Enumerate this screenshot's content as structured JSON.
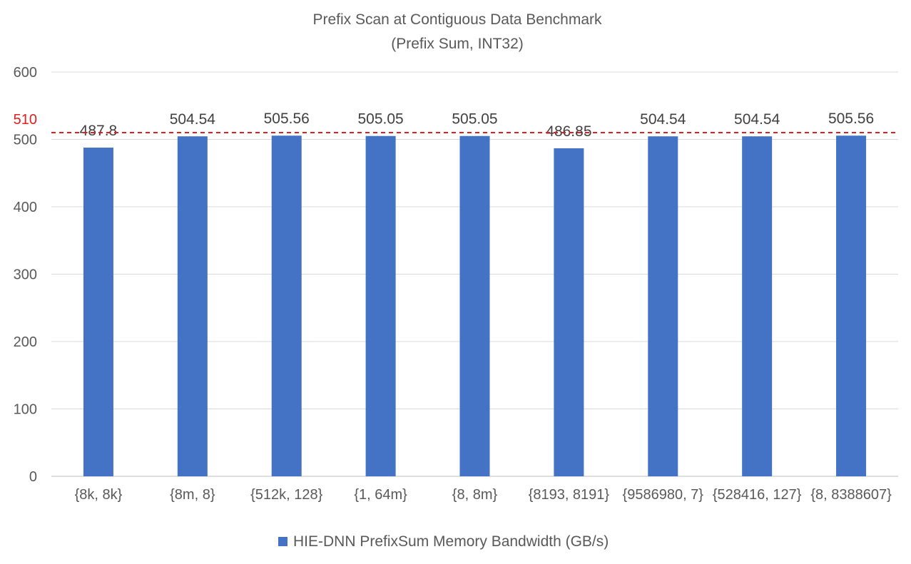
{
  "chart_data": {
    "type": "bar",
    "title": "Prefix Scan at Contiguous Data Benchmark",
    "subtitle": "(Prefix Sum, INT32)",
    "xlabel": "",
    "ylabel": "",
    "ylim": [
      0,
      600
    ],
    "yticks": [
      0,
      100,
      200,
      300,
      400,
      500,
      600
    ],
    "grid": true,
    "legend_position": "bottom",
    "categories": [
      "{8k, 8k}",
      "{8m, 8}",
      "{512k, 128}",
      "{1, 64m}",
      "{8, 8m}",
      "{8193, 8191}",
      "{9586980, 7}",
      "{528416, 127}",
      "{8, 8388607}"
    ],
    "series": [
      {
        "name": "HIE-DNN PrefixSum Memory Bandwidth (GB/s)",
        "color": "#4472C4",
        "values": [
          487.8,
          504.54,
          505.56,
          505.05,
          505.05,
          486.85,
          504.54,
          504.54,
          505.56
        ],
        "labels": [
          "487.8",
          "504.54",
          "505.56",
          "505.05",
          "505.05",
          "486.85",
          "504.54",
          "504.54",
          "505.56"
        ]
      }
    ],
    "reference_line": {
      "value": 510,
      "label": "510",
      "color": "#E02020",
      "style": "dashed"
    }
  }
}
